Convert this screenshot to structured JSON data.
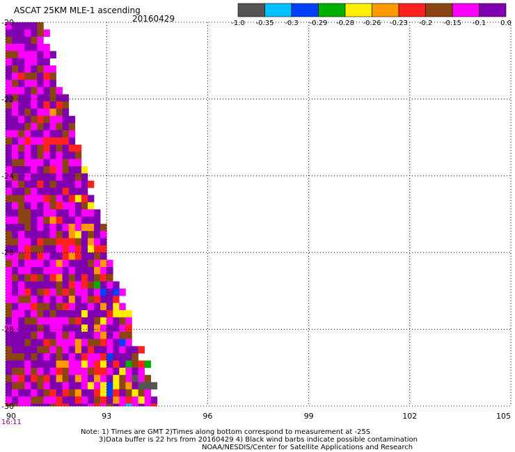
{
  "header": {
    "title": "ASCAT 25KM MLE-1 ascending",
    "date": "20160429"
  },
  "colors": {
    "background": "#ffffff",
    "grid": "#000000",
    "time_label": "#800080"
  },
  "colorbar": {
    "segments": [
      "#555555",
      "#00c0ff",
      "#0040ff",
      "#00b000",
      "#ffee00",
      "#ff9900",
      "#ff2020",
      "#8b4513",
      "#ff00ff",
      "#8000b0"
    ],
    "labels": [
      "-1.0",
      "-0.35",
      "-0.3",
      "-0.29",
      "-0.28",
      "-0.26",
      "-0.23",
      "-0.2",
      "-0.15",
      "-0.1",
      "0.0"
    ]
  },
  "chart_data": {
    "type": "heatmap",
    "title": "ASCAT 25KM MLE-1 ascending",
    "xlim": [
      90,
      105
    ],
    "ylim": [
      -30,
      -20
    ],
    "x_ticks": [
      90,
      93,
      96,
      99,
      102,
      105
    ],
    "y_ticks": [
      -20,
      -22,
      -24,
      -26,
      -28,
      -30
    ],
    "x_tick_labels": [
      "90",
      "93",
      "96",
      "99",
      "102",
      "105"
    ],
    "y_tick_labels": [
      "-20",
      "-22",
      "-24",
      "-26",
      "-28",
      "-30"
    ],
    "time_label": "16:11",
    "grid": true,
    "cell_lat_step": 0.1875,
    "cell_lon_step": 0.1875,
    "swath_edge": [
      {
        "lat": -20.0,
        "lon_max": 91.0
      },
      {
        "lat": -21.9,
        "lon_max": 91.7
      },
      {
        "lat": -24.0,
        "lon_max": 92.4
      },
      {
        "lat": -26.0,
        "lon_max": 93.0
      },
      {
        "lat": -27.9,
        "lon_max": 93.7
      },
      {
        "lat": -30.0,
        "lon_max": 94.5
      }
    ],
    "legend": [
      "-1.0",
      "-0.35",
      "-0.3",
      "-0.29",
      "-0.28",
      "-0.26",
      "-0.23",
      "-0.2",
      "-0.15",
      "-0.1",
      "0.0"
    ]
  },
  "notes": {
    "line1": "Note: 1) Times are GMT 2)Times along bottom correspond to measurement at -25S",
    "line2": "3)Data buffer is 22 hrs from 20160429 4) Black wind barbs indicate possible contamination",
    "line3": "NOAA/NESDIS/Center for Satellite Applications and Research"
  }
}
